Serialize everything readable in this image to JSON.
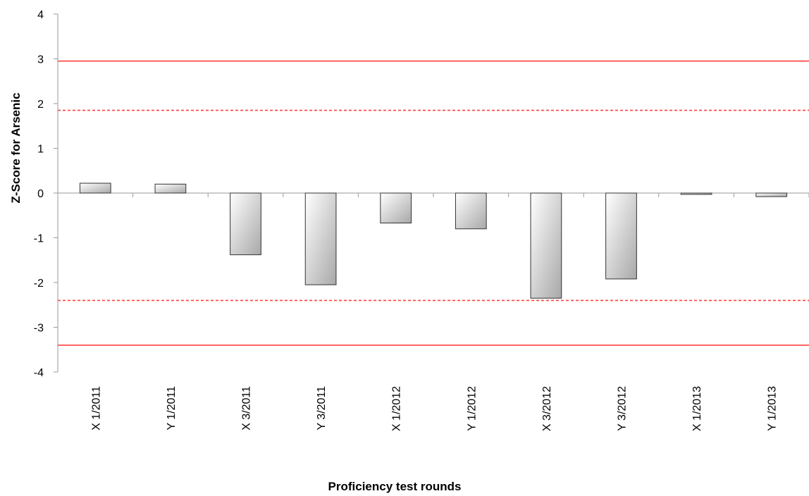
{
  "chart_data": {
    "type": "bar",
    "title": "",
    "xlabel": "Proficiency test rounds",
    "ylabel": "Z-Score for Arsenic",
    "ylim": [
      -4,
      4
    ],
    "yticks": [
      4,
      3,
      2,
      1,
      0,
      -1,
      -2,
      -3,
      -4
    ],
    "yticklabels": [
      "4",
      "3",
      "2",
      "1",
      "0",
      "-1",
      "-2",
      "-3",
      "-4"
    ],
    "categories": [
      "X 1/2011",
      "Y 1/2011",
      "X 3/2011",
      "Y 3/2011",
      "X 1/2012",
      "Y 1/2012",
      "X 3/2012",
      "Y 3/2012",
      "X 1/2013",
      "Y 1/2013"
    ],
    "values": [
      0.22,
      0.2,
      -1.38,
      -2.05,
      -0.67,
      -0.8,
      -2.35,
      -1.92,
      -0.03,
      -0.08
    ],
    "grid": false,
    "legend": "none",
    "reference_lines": [
      {
        "y": 2.95,
        "style": "solid",
        "color": "#ff4040"
      },
      {
        "y": 1.85,
        "style": "dashed",
        "color": "#ff4040"
      },
      {
        "y": -2.4,
        "style": "dashed",
        "color": "#ff4040"
      },
      {
        "y": -3.4,
        "style": "solid",
        "color": "#ff4040"
      }
    ],
    "bar_fill": "gradient-gray"
  }
}
